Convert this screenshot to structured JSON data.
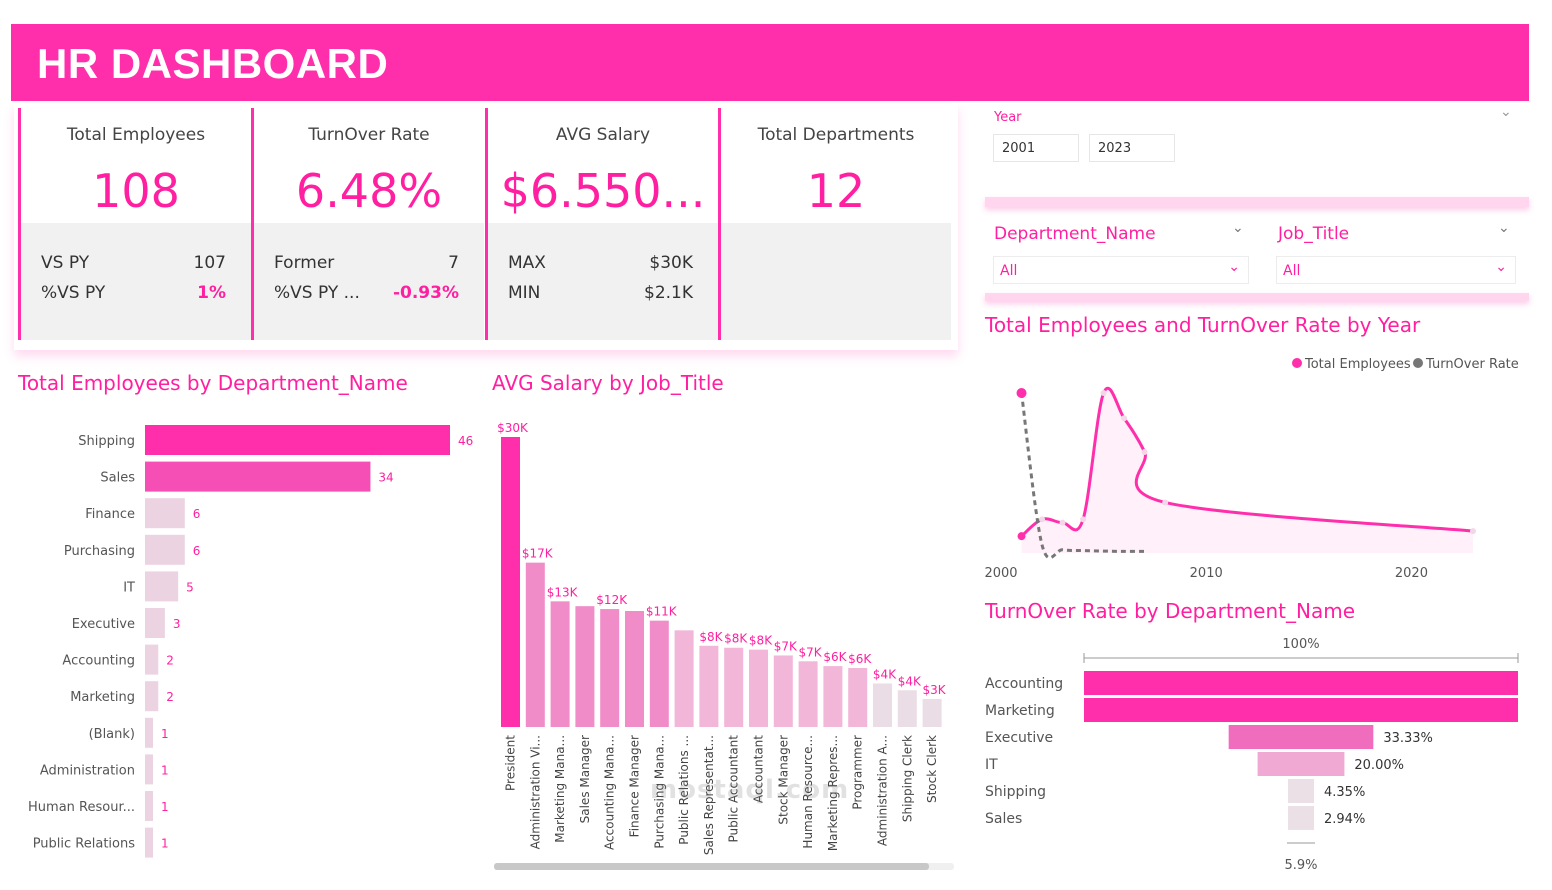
{
  "header": {
    "title": "HR DASHBOARD"
  },
  "kpis": {
    "total_employees": {
      "label": "Total Employees",
      "value": "108",
      "row1_k": "VS PY",
      "row1_v": "107",
      "row2_k": "%VS PY",
      "row2_v": "1%"
    },
    "turnover": {
      "label": "TurnOver Rate",
      "value": "6.48%",
      "row1_k": "Former",
      "row1_v": "7",
      "row2_k": "%VS PY ...",
      "row2_v": "-0.93%"
    },
    "avg_salary": {
      "label": "AVG Salary",
      "value": "$6.550...",
      "row1_k": "MAX",
      "row1_v": "$30K",
      "row2_k": "MIN",
      "row2_v": "$2.1K"
    },
    "departments": {
      "label": "Total Departments",
      "value": "12"
    }
  },
  "filters": {
    "year": {
      "label": "Year",
      "from": "2001",
      "to": "2023"
    },
    "department": {
      "label": "Department_Name",
      "value": "All"
    },
    "job_title": {
      "label": "Job_Title",
      "value": "All"
    }
  },
  "titles": {
    "dept_employees": "Total Employees by Department_Name",
    "avg_salary_job": "AVG Salary by Job_Title",
    "year_trend": "Total Employees and TurnOver Rate by Year",
    "turnover_dept": "TurnOver Rate by Department_Name"
  },
  "colors": {
    "accent": "#ff2fac",
    "text_pink": "#ff1fa0"
  },
  "watermark": "mostaql.com",
  "chart_data": [
    {
      "id": "dept",
      "type": "bar",
      "orientation": "horizontal",
      "title": "Total Employees by Department_Name",
      "categories": [
        "Shipping",
        "Sales",
        "Finance",
        "Purchasing",
        "IT",
        "Executive",
        "Accounting",
        "Marketing",
        "(Blank)",
        "Administration",
        "Human Resour...",
        "Public Relations"
      ],
      "values": [
        46,
        34,
        6,
        6,
        5,
        3,
        2,
        2,
        1,
        1,
        1,
        1
      ]
    },
    {
      "id": "salary",
      "type": "bar",
      "title": "AVG Salary by Job_Title",
      "categories": [
        "President",
        "Administration Vi...",
        "Marketing Mana...",
        "Sales Manager",
        "Accounting Mana...",
        "Finance Manager",
        "Purchasing Mana...",
        "Public Relations ...",
        "Sales Representat...",
        "Public Accountant",
        "Accountant",
        "Stock Manager",
        "Human Resource...",
        "Marketing Repres...",
        "Programmer",
        "Administration A...",
        "Shipping Clerk",
        "Stock Clerk"
      ],
      "values": [
        30,
        17,
        13,
        12.5,
        12.2,
        12,
        11,
        10,
        8.4,
        8.2,
        8,
        7.4,
        6.8,
        6.3,
        6.1,
        4.5,
        3.8,
        2.9
      ],
      "labels": [
        "$30K",
        "$17K",
        "$13K",
        "",
        "$12K",
        "",
        "$11K",
        "",
        "$8K",
        "$8K",
        "$8K",
        "$7K",
        "$7K",
        "$6K",
        "$6K",
        "$4K",
        "$4K",
        "$3K"
      ],
      "unit": "$K"
    },
    {
      "id": "trend",
      "type": "line",
      "title": "Total Employees and TurnOver Rate by Year",
      "legend": [
        "Total Employees",
        "TurnOver Rate"
      ],
      "legend_position": "top-right",
      "x_ticks": [
        "2000",
        "2010",
        "2020"
      ],
      "xlim": [
        2000,
        2023
      ],
      "series": [
        {
          "name": "Total Employees",
          "x": [
            2001,
            2002,
            2003,
            2004,
            2005,
            2006,
            2007,
            2008,
            2023
          ],
          "y": [
            1,
            2,
            1.8,
            2,
            9.5,
            8,
            6,
            3,
            1.3
          ]
        },
        {
          "name": "TurnOver Rate",
          "x": [
            2001,
            2002,
            2003,
            2004,
            2005,
            2006,
            2007
          ],
          "y": [
            100,
            5,
            2,
            1.5,
            1.2,
            1,
            1
          ]
        }
      ]
    },
    {
      "id": "turnover",
      "type": "bar",
      "orientation": "horizontal",
      "title": "TurnOver Rate by Department_Name",
      "categories": [
        "Accounting",
        "Marketing",
        "Executive",
        "IT",
        "Shipping",
        "Sales"
      ],
      "values": [
        100,
        100,
        33.33,
        20.0,
        4.35,
        2.94
      ],
      "labels": [
        "",
        "",
        "33.33%",
        "20.00%",
        "4.35%",
        "2.94%"
      ],
      "axis_top_label": "100%",
      "axis_bottom_label": "5.9%"
    }
  ]
}
